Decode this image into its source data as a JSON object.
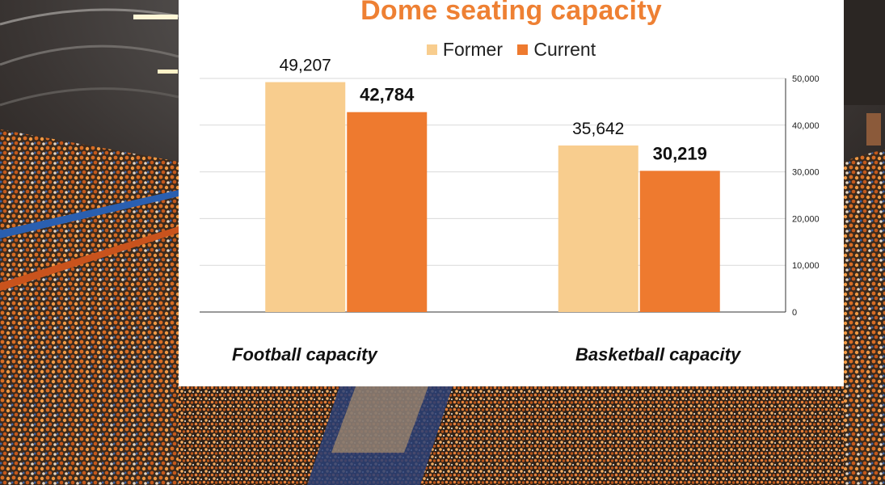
{
  "colors": {
    "former": "#f8cd8e",
    "current": "#ee7a2f",
    "title": "#ee8033",
    "grid": "#d9d9d9"
  },
  "chart_data": {
    "type": "bar",
    "title": "Dome seating capacity",
    "categories": [
      "Football capacity",
      "Basketball capacity"
    ],
    "series": [
      {
        "name": "Former",
        "values": [
          49207,
          35642
        ],
        "labels": [
          "49,207",
          "35,642"
        ],
        "label_style": "normal"
      },
      {
        "name": "Current",
        "values": [
          42784,
          30219
        ],
        "labels": [
          "42,784",
          "30,219"
        ],
        "label_style": "bold"
      }
    ],
    "y_axis_side": "right",
    "ylim": [
      0,
      50000
    ],
    "yticks": [
      0,
      10000,
      20000,
      30000,
      40000,
      50000
    ],
    "ytick_labels": [
      "0",
      "10,000",
      "20,000",
      "30,000",
      "40,000",
      "50,000"
    ],
    "grid": true,
    "legend_position": "top-center",
    "xlabel": "",
    "ylabel": ""
  }
}
